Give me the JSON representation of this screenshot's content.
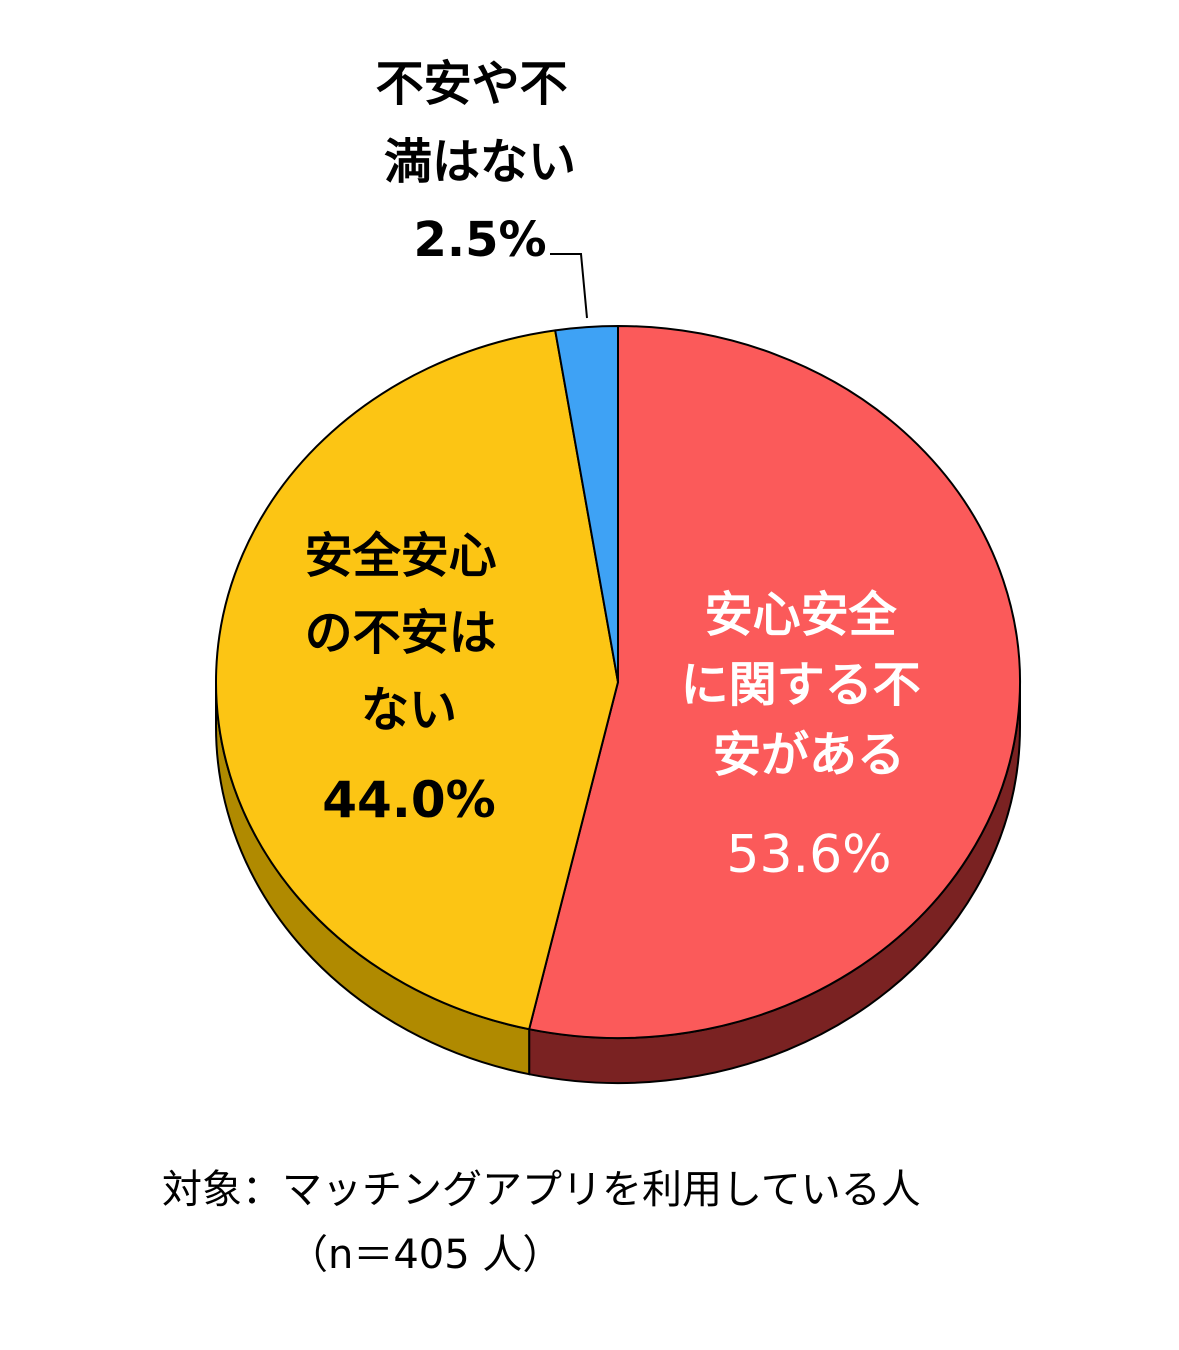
{
  "chart_data": {
    "type": "pie",
    "slices": [
      {
        "label_lines": [
          "安心安全",
          "に関する不",
          "安がある"
        ],
        "value": 53.6,
        "value_text": "53.6%",
        "color": "#fb5a5a",
        "side_color": "#7a2222",
        "text_color": "#ffffff"
      },
      {
        "label_lines": [
          "安全安心",
          "の不安は",
          "ない"
        ],
        "value": 44.0,
        "value_text": "44.0%",
        "color": "#fcc514",
        "side_color": "#b08a00",
        "text_color": "#000000"
      },
      {
        "label_lines": [
          "不安や不",
          "満はない"
        ],
        "value": 2.5,
        "value_text": "2.5%",
        "color": "#3ea2f5",
        "side_color": "#1b5e96",
        "text_color": "#000000"
      }
    ]
  },
  "footnote": {
    "line1": "対象：マッチングアプリを利用している人",
    "line2": "（n＝405 人）"
  }
}
